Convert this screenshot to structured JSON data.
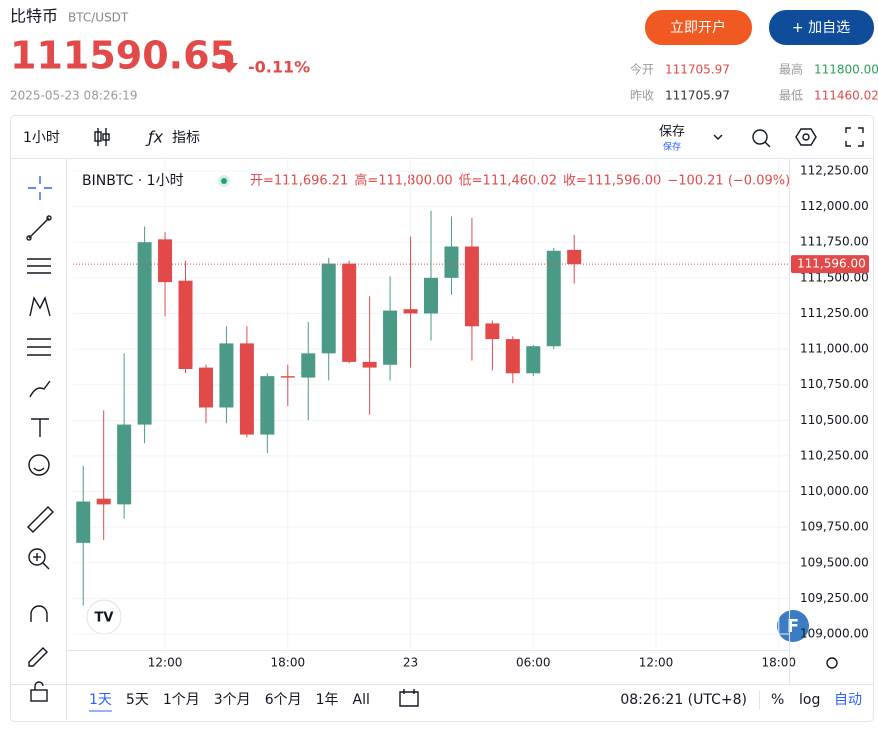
{
  "header": {
    "title": "比特币",
    "symbol": "BTC/USDT",
    "price": "111590.65",
    "change": "-0.11%",
    "timestamp": "2025-05-23 08:26:19",
    "buttons": [
      "立即开户",
      "+ 加自选"
    ],
    "stats": [
      {
        "label": "今开",
        "value": "111705.97"
      },
      {
        "label": "最高",
        "value": "111800.00"
      },
      {
        "label": "昨收",
        "value": "111705.97"
      },
      {
        "label": "最低",
        "value": "111460.02"
      }
    ]
  },
  "toolbar": {
    "interval": "1小时",
    "indicators": "指标",
    "save": "保存",
    "save_sub": "保存"
  },
  "chart_data": {
    "type": "candlestick",
    "legend": {
      "symbol": "BINBTC · 1小时",
      "items": [
        "开=111,696.21",
        "高=111,800.00",
        "低=111,460.02",
        "收=111,596.00"
      ],
      "change": "−100.21 (−0.09%)"
    },
    "open": [
      109640,
      109950,
      109910,
      110470,
      111770,
      111480,
      110870,
      110590,
      111040,
      110400,
      110810,
      110800,
      110970,
      111600,
      110910,
      110890,
      111280,
      111250,
      111500,
      111720,
      111180,
      111070,
      110830,
      111020,
      111696.21
    ],
    "high": [
      110180,
      110570,
      110970,
      111860,
      111820,
      111620,
      110890,
      111160,
      111160,
      110830,
      110890,
      111190,
      111640,
      111620,
      111370,
      111510,
      111790,
      111970,
      111930,
      111920,
      111200,
      111090,
      111030,
      111710,
      111800
    ],
    "low": [
      109200,
      109660,
      109810,
      110340,
      111230,
      110830,
      110480,
      110480,
      110380,
      110270,
      110600,
      110500,
      110780,
      110900,
      110540,
      110780,
      110870,
      111060,
      111380,
      110920,
      110850,
      110760,
      110810,
      111000,
      111460.02
    ],
    "close": [
      109930,
      109910,
      110470,
      111750,
      111470,
      110860,
      110590,
      111040,
      110400,
      110810,
      110800,
      110970,
      111600,
      110910,
      110870,
      111270,
      111250,
      111500,
      111720,
      111160,
      111070,
      110830,
      111020,
      111690,
      111596
    ],
    "up_color": "#4a9a87",
    "down_color": "#e24a4a",
    "price_line": {
      "value": 111596,
      "label": "111,596.00"
    },
    "ylim": [
      108888,
      112341
    ],
    "yticks": [
      {
        "value": 109000,
        "label": "109,000.00"
      },
      {
        "value": 109250,
        "label": "109,250.00"
      },
      {
        "value": 109500,
        "label": "109,500.00"
      },
      {
        "value": 109750,
        "label": "109,750.00"
      },
      {
        "value": 110000,
        "label": "110,000.00"
      },
      {
        "value": 110250,
        "label": "110,250.00"
      },
      {
        "value": 110500,
        "label": "110,500.00"
      },
      {
        "value": 110750,
        "label": "110,750.00"
      },
      {
        "value": 111000,
        "label": "111,000.00"
      },
      {
        "value": 111250,
        "label": "111,250.00"
      },
      {
        "value": 111500,
        "label": "111,500.00"
      },
      {
        "value": 111750,
        "label": "111,750.00"
      },
      {
        "value": 112000,
        "label": "112,000.00"
      },
      {
        "value": 112250,
        "label": "112,250.00"
      }
    ],
    "xlim": [
      -0.5,
      34.5
    ],
    "xticks": [
      {
        "value": 4,
        "label": "12:00"
      },
      {
        "value": 10,
        "label": "18:00"
      },
      {
        "value": 16,
        "label": "23"
      },
      {
        "value": 22,
        "label": "06:00"
      },
      {
        "value": 28,
        "label": "12:00"
      },
      {
        "value": 34,
        "label": "18:00"
      }
    ],
    "grid": true
  },
  "footer": {
    "range_buttons": [
      "1天",
      "5天",
      "1个月",
      "3个月",
      "6个月",
      "1年",
      "All"
    ],
    "clock": "08:26:21 (UTC+8)",
    "scale_options": [
      "%",
      "log",
      "自动"
    ]
  }
}
